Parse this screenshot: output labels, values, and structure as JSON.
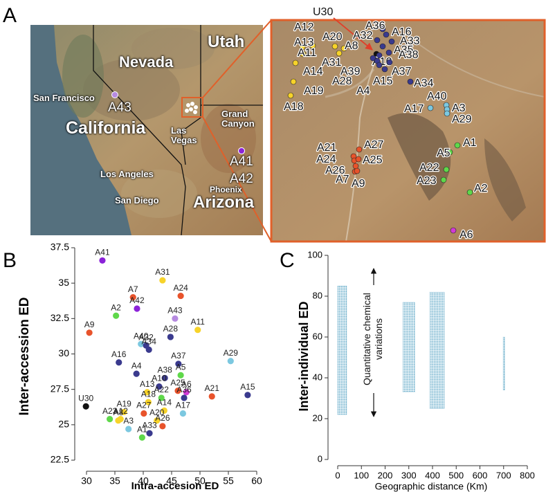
{
  "panel_labels": [
    "A",
    "B",
    "C"
  ],
  "map": {
    "places": [
      "Utah",
      "Nevada",
      "San Francisco",
      "California",
      "Las Vegas",
      "Grand Canyon",
      "Los Angeles",
      "San Diego",
      "Phoenix",
      "Arizona"
    ],
    "accessions": [
      {
        "name": "A43",
        "color": "#b68ae0"
      },
      {
        "name": "A41",
        "color": "#8b22d8"
      },
      {
        "name": "A42",
        "color": "#8b22d8"
      }
    ]
  },
  "inset": {
    "accessions": [
      {
        "name": "U30",
        "color": "#111111"
      },
      {
        "name": "A36",
        "color": "#3a3a8e"
      },
      {
        "name": "A16",
        "color": "#3a3a8e"
      },
      {
        "name": "A32",
        "color": "#3a3a8e"
      },
      {
        "name": "A33",
        "color": "#3a3a8e"
      },
      {
        "name": "A35",
        "color": "#3a3a8e"
      },
      {
        "name": "A38",
        "color": "#3a3a8e"
      },
      {
        "name": "A10",
        "color": "#3a3a8e"
      },
      {
        "name": "A39",
        "color": "#3a3a8e"
      },
      {
        "name": "A28",
        "color": "#3a3a8e"
      },
      {
        "name": "A4",
        "color": "#3a3a8e"
      },
      {
        "name": "A15",
        "color": "#3a3a8e"
      },
      {
        "name": "A37",
        "color": "#3a3a8e"
      },
      {
        "name": "A34",
        "color": "#3a3a8e"
      },
      {
        "name": "A12",
        "color": "#f7d32a"
      },
      {
        "name": "A13",
        "color": "#f7d32a"
      },
      {
        "name": "A20",
        "color": "#f7d32a"
      },
      {
        "name": "A8",
        "color": "#f7d32a"
      },
      {
        "name": "A11",
        "color": "#f7d32a"
      },
      {
        "name": "A31",
        "color": "#f7d32a"
      },
      {
        "name": "A14",
        "color": "#f7d32a"
      },
      {
        "name": "A19",
        "color": "#f7d32a"
      },
      {
        "name": "A18",
        "color": "#f7d32a"
      },
      {
        "name": "A40",
        "color": "#7cc8e0"
      },
      {
        "name": "A17",
        "color": "#7cc8e0"
      },
      {
        "name": "A3",
        "color": "#7cc8e0"
      },
      {
        "name": "A29",
        "color": "#7cc8e0"
      },
      {
        "name": "A21",
        "color": "#e8532b"
      },
      {
        "name": "A27",
        "color": "#e8532b"
      },
      {
        "name": "A24",
        "color": "#e8532b"
      },
      {
        "name": "A25",
        "color": "#e8532b"
      },
      {
        "name": "A26",
        "color": "#e8532b"
      },
      {
        "name": "A7",
        "color": "#e8532b"
      },
      {
        "name": "A9",
        "color": "#e8532b"
      },
      {
        "name": "A1",
        "color": "#5fd84a"
      },
      {
        "name": "A5",
        "color": "#5fd84a"
      },
      {
        "name": "A22",
        "color": "#5fd84a"
      },
      {
        "name": "A23",
        "color": "#5fd84a"
      },
      {
        "name": "A2",
        "color": "#5fd84a"
      },
      {
        "name": "A6",
        "color": "#d23ad6"
      }
    ]
  },
  "chart_data": [
    {
      "type": "scatter",
      "xlabel": "Intra-accesion ED",
      "ylabel": "Inter-accession ED",
      "labels": [
        "A41",
        "A31",
        "A7",
        "A24",
        "A2",
        "A42",
        "A43",
        "A9",
        "A11",
        "A28",
        "A40",
        "A32",
        "A34",
        "A29",
        "A16",
        "A37",
        "A4",
        "A38",
        "A5",
        "A15",
        "A10",
        "A25",
        "A6",
        "A21",
        "A36",
        "A13",
        "A18",
        "A22",
        "U30",
        "A19",
        "A27",
        "A14",
        "A17",
        "A23",
        "A12",
        "A20",
        "A8",
        "A3",
        "A26",
        "A33",
        "A1"
      ],
      "x": [
        32.8,
        43.4,
        38.2,
        46.6,
        35.2,
        38.9,
        45.6,
        30.5,
        49.6,
        44.8,
        39.6,
        40.5,
        41.0,
        55.4,
        35.7,
        46.2,
        38.8,
        43.8,
        46.6,
        58.4,
        42.8,
        46.1,
        47.6,
        52.1,
        47.2,
        40.7,
        40.9,
        43.2,
        29.9,
        36.6,
        40.1,
        43.7,
        47.0,
        34.1,
        36.0,
        42.4,
        35.6,
        37.4,
        43.4,
        41.1,
        39.8
      ],
      "values": [
        36.6,
        35.2,
        34.0,
        34.1,
        32.7,
        33.2,
        32.5,
        31.5,
        31.7,
        31.2,
        30.7,
        30.6,
        30.3,
        29.5,
        29.4,
        29.3,
        28.6,
        28.3,
        28.5,
        27.1,
        27.7,
        27.4,
        27.3,
        27.0,
        26.9,
        27.3,
        26.6,
        26.9,
        26.3,
        25.9,
        25.8,
        26.0,
        25.8,
        25.4,
        25.4,
        25.3,
        25.3,
        24.7,
        24.9,
        24.4,
        24.1
      ],
      "colors": [
        "#8b22d8",
        "#f7d32a",
        "#e8532b",
        "#e8532b",
        "#5fd84a",
        "#8b22d8",
        "#b68ae0",
        "#e8532b",
        "#f7d32a",
        "#3a3a8e",
        "#7cc8e0",
        "#3a3a8e",
        "#3a3a8e",
        "#7cc8e0",
        "#3a3a8e",
        "#3a3a8e",
        "#3a3a8e",
        "#3a3a8e",
        "#5fd84a",
        "#3a3a8e",
        "#3a3a8e",
        "#e8532b",
        "#d23ad6",
        "#e8532b",
        "#3a3a8e",
        "#f7d32a",
        "#f7d32a",
        "#5fd84a",
        "#111111",
        "#f7d32a",
        "#e8532b",
        "#f7d32a",
        "#7cc8e0",
        "#5fd84a",
        "#f7d32a",
        "#f7d32a",
        "#f7d32a",
        "#7cc8e0",
        "#e8532b",
        "#3a3a8e",
        "#5fd84a"
      ],
      "xlim": [
        30,
        60
      ],
      "xticks": [
        30,
        35,
        40,
        45,
        50,
        55,
        60
      ],
      "ylim": [
        22.5,
        37.5
      ],
      "yticks": [
        22.5,
        25,
        27.5,
        30,
        32.5,
        35,
        37.5
      ]
    },
    {
      "type": "cloud",
      "xlabel": "Geographic distance (Km)",
      "ylabel": "Inter-individual ED",
      "annotation": "Quantitative chemical variations",
      "color": "#2b8cb5",
      "clusters": [
        {
          "x": [
            0,
            38
          ],
          "y": [
            22,
            85
          ]
        },
        {
          "x": [
            275,
            325
          ],
          "y": [
            33,
            77
          ]
        },
        {
          "x": [
            388,
            450
          ],
          "y": [
            25,
            82
          ]
        },
        {
          "x": [
            698,
            705
          ],
          "y": [
            34,
            60
          ]
        }
      ],
      "xlim": [
        0,
        800
      ],
      "xticks": [
        0,
        100,
        200,
        300,
        400,
        500,
        600,
        700,
        800
      ],
      "ylim": [
        0,
        100
      ],
      "yticks": [
        0,
        20,
        40,
        60,
        80,
        100
      ]
    }
  ]
}
